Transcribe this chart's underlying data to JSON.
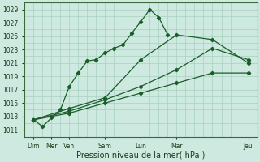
{
  "xlabel": "Pression niveau de la mer( hPa )",
  "background_color": "#ceeae0",
  "grid_color": "#a8cfc0",
  "line_color": "#1a5c2a",
  "ylim": [
    1010,
    1030
  ],
  "xlim": [
    0,
    13
  ],
  "xtick_major_positions": [
    0.5,
    1.5,
    2.5,
    4.5,
    6.5,
    8.5,
    12.5
  ],
  "xtick_major_labels": [
    "Dim",
    "Mer",
    "Ven",
    "Sam",
    "Lun",
    "Mar",
    "Jeu"
  ],
  "series": [
    {
      "x": [
        0.5,
        1.0,
        1.5,
        2.0,
        2.5,
        3.0,
        3.5,
        4.0,
        4.5,
        5.0,
        5.5,
        6.0,
        6.5,
        7.0,
        7.5,
        8.0
      ],
      "y": [
        1012.5,
        1011.5,
        1012.8,
        1014.0,
        1017.5,
        1019.5,
        1021.3,
        1021.5,
        1022.5,
        1023.2,
        1023.7,
        1025.5,
        1027.2,
        1029.0,
        1027.8,
        1025.2
      ]
    },
    {
      "x": [
        0.5,
        2.5,
        4.5,
        6.5,
        8.5,
        10.5,
        12.5
      ],
      "y": [
        1012.5,
        1013.5,
        1015.0,
        1016.5,
        1018.0,
        1019.5,
        1019.5
      ]
    },
    {
      "x": [
        0.5,
        2.5,
        4.5,
        6.5,
        8.5,
        10.5,
        12.5
      ],
      "y": [
        1012.5,
        1013.8,
        1015.5,
        1017.5,
        1020.0,
        1023.2,
        1021.5
      ]
    },
    {
      "x": [
        0.5,
        2.5,
        4.5,
        6.5,
        8.5,
        10.5,
        12.5
      ],
      "y": [
        1012.5,
        1014.2,
        1015.8,
        1021.5,
        1025.2,
        1024.5,
        1021.0
      ]
    }
  ]
}
